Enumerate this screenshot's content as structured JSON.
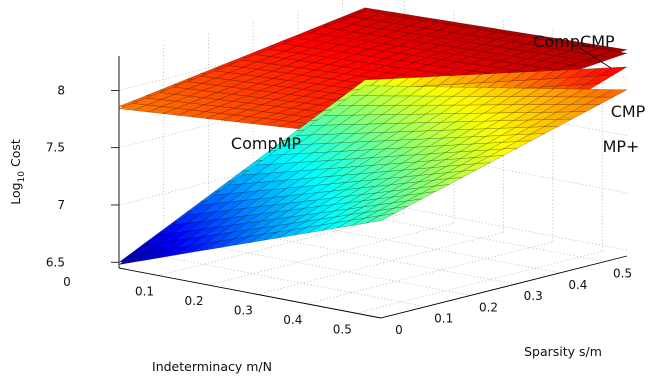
{
  "chart_data": {
    "type": "surface3d",
    "title": "",
    "xlabel": "Indeterminacy m/N",
    "ylabel": "Sparsity s/m",
    "zlabel_prefix": "Log",
    "zlabel_sub": "10",
    "zlabel_suffix": " Cost",
    "xlim": [
      0.02,
      0.55
    ],
    "ylim": [
      0,
      0.55
    ],
    "zlim": [
      6.45,
      8.3
    ],
    "x_ticks": [
      "0",
      "0.1",
      "0.2",
      "0.3",
      "0.4",
      "0.5"
    ],
    "y_ticks": [
      "0",
      "0.1",
      "0.2",
      "0.3",
      "0.4",
      "0.5"
    ],
    "z_ticks": [
      "6.5",
      "7",
      "7.5",
      "8"
    ],
    "grid": true,
    "colormap": "jet",
    "surfaces": [
      {
        "name": "CompCMP",
        "corners": {
          "x_min_y_min": 7.86,
          "x_max_y_min": 8.05,
          "x_min_y_max": 8.18,
          "x_max_y_max": 8.25
        }
      },
      {
        "name": "CompMP",
        "corners": {
          "x_min_y_min": 7.84,
          "x_max_y_min": 8.02,
          "x_min_y_max": 8.15,
          "x_max_y_max": 8.22
        }
      },
      {
        "name": "CMP",
        "corners": {
          "x_min_y_min": 6.5,
          "x_max_y_min": 7.35,
          "x_min_y_max": 7.55,
          "x_max_y_max": 8.1
        }
      },
      {
        "name": "MP+",
        "corners": {
          "x_min_y_min": 6.48,
          "x_max_y_min": 7.3,
          "x_min_y_max": 7.5,
          "x_max_y_max": 7.9
        }
      }
    ]
  }
}
